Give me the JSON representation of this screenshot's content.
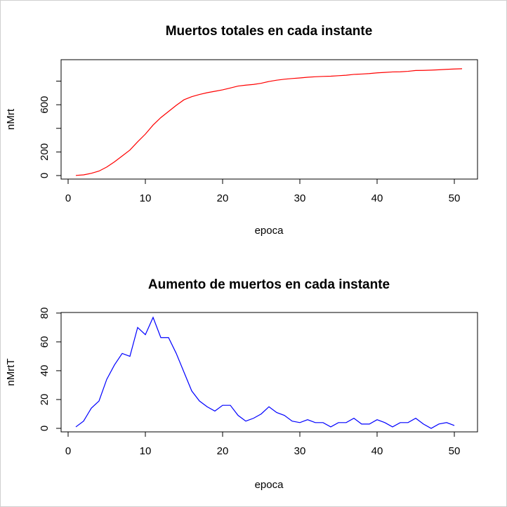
{
  "chart_data": [
    {
      "type": "line",
      "title": "Muertos totales en cada instante",
      "xlabel": "epoca",
      "ylabel": "nMrt",
      "xlim": [
        1,
        51
      ],
      "ylim": [
        0,
        940
      ],
      "x_ticks": [
        0,
        10,
        20,
        30,
        40,
        50
      ],
      "y_ticks": [
        0,
        200,
        400,
        600,
        800
      ],
      "y_tick_labels": [
        "0",
        "200",
        "",
        "600",
        ""
      ],
      "color": "#ff0000",
      "grid": false,
      "series": [
        {
          "values": [
            1,
            6,
            19,
            38,
            72,
            116,
            166,
            216,
            286,
            351,
            428,
            491,
            543,
            595,
            642,
            668,
            687,
            702,
            714,
            726,
            742,
            758,
            766,
            772,
            782,
            797,
            808,
            816,
            822,
            827,
            833,
            837,
            840,
            842,
            846,
            850,
            857,
            860,
            864,
            870,
            874,
            878,
            879,
            883,
            890,
            891,
            893,
            896,
            900,
            903,
            905
          ]
        }
      ]
    },
    {
      "type": "line",
      "title": "Aumento de muertos en cada instante",
      "xlabel": "epoca",
      "ylabel": "nMrtT",
      "xlim": [
        1,
        50
      ],
      "ylim": [
        0,
        77
      ],
      "x_ticks": [
        0,
        10,
        20,
        30,
        40,
        50
      ],
      "y_ticks": [
        0,
        20,
        40,
        60,
        80
      ],
      "y_tick_labels": [
        "0",
        "20",
        "40",
        "60",
        "80"
      ],
      "color": "#0000ff",
      "grid": false,
      "series": [
        {
          "values": [
            1,
            5,
            14,
            19,
            34,
            44,
            52,
            50,
            70,
            65,
            77,
            63,
            63,
            52,
            39,
            26,
            19,
            15,
            12,
            16,
            16,
            9,
            5,
            7,
            10,
            15,
            11,
            9,
            5,
            4,
            6,
            4,
            4,
            1,
            4,
            4,
            7,
            3,
            3,
            6,
            4,
            1,
            4,
            4,
            7,
            3,
            0,
            3,
            4,
            2
          ]
        }
      ]
    }
  ]
}
